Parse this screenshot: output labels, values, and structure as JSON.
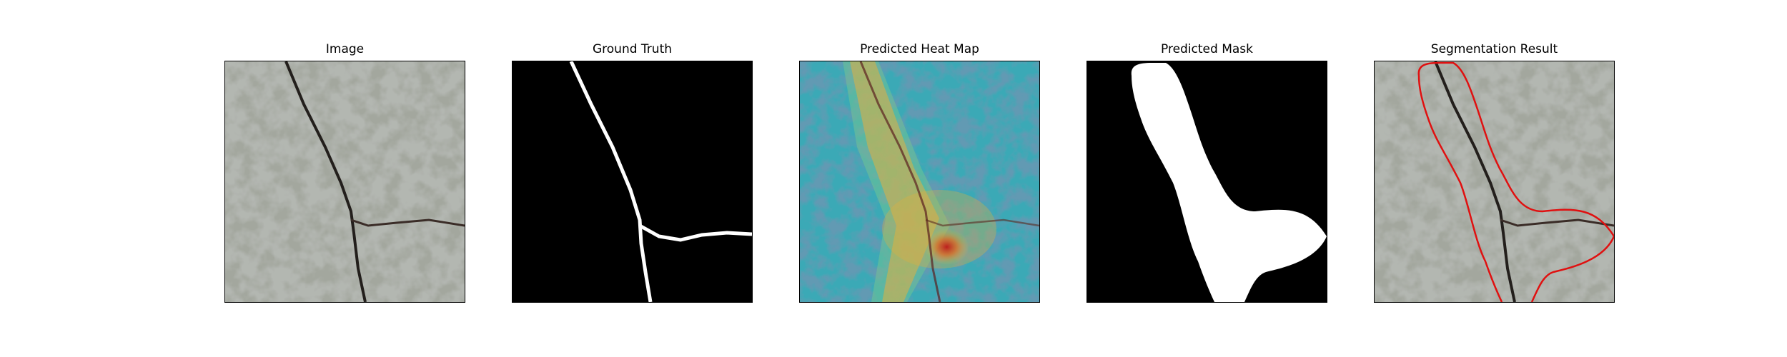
{
  "figure": {
    "panels": [
      {
        "id": "image",
        "title": "Image"
      },
      {
        "id": "ground-truth",
        "title": "Ground Truth"
      },
      {
        "id": "heat-map",
        "title": "Predicted Heat Map"
      },
      {
        "id": "mask",
        "title": "Predicted Mask"
      },
      {
        "id": "segmentation",
        "title": "Segmentation Result"
      }
    ],
    "colors": {
      "texture_light": "#9ca097",
      "texture_dark": "#3c3f39",
      "crack": "#2a2522",
      "mask_fg": "#ffffff",
      "mask_bg": "#000000",
      "contour": "#e01010"
    }
  }
}
